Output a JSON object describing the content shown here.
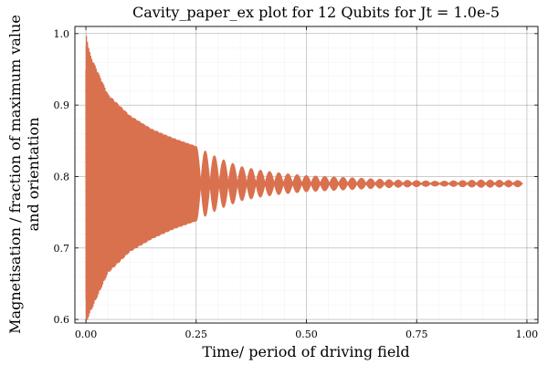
{
  "chart_data": {
    "type": "line",
    "title": "Cavity_paper_ex plot for 12 Qubits for Jt = 1.0e-5",
    "xlabel": "Time/ period of driving field",
    "ylabel_lines": [
      "Magnetisation / fraction of maximum value",
      "and orientation"
    ],
    "xlim": [
      -0.025,
      1.025
    ],
    "ylim": [
      0.595,
      1.01
    ],
    "x_ticks": [
      0.0,
      0.25,
      0.5,
      0.75,
      1.0
    ],
    "x_tick_labels": [
      "0.00",
      "0.25",
      "0.50",
      "0.75",
      "1.00"
    ],
    "y_ticks": [
      0.6,
      0.7,
      0.8,
      0.9,
      1.0
    ],
    "y_tick_labels": [
      "0.6",
      "0.7",
      "0.8",
      "0.9",
      "1.0"
    ],
    "grid": true,
    "legend": false,
    "series": [
      {
        "color": "#d9714f",
        "description": "rapidly oscillating magnetisation with decaying envelope around 0.79",
        "envelope": [
          {
            "x": 0.0,
            "min": 0.595,
            "max": 1.0
          },
          {
            "x": 0.01,
            "min": 0.61,
            "max": 0.97
          },
          {
            "x": 0.05,
            "min": 0.665,
            "max": 0.915
          },
          {
            "x": 0.1,
            "min": 0.695,
            "max": 0.885
          },
          {
            "x": 0.15,
            "min": 0.713,
            "max": 0.866
          },
          {
            "x": 0.2,
            "min": 0.727,
            "max": 0.853
          },
          {
            "x": 0.25,
            "min": 0.738,
            "max": 0.842
          },
          {
            "x": 0.3,
            "min": 0.754,
            "max": 0.826
          },
          {
            "x": 0.35,
            "min": 0.766,
            "max": 0.814
          },
          {
            "x": 0.4,
            "min": 0.772,
            "max": 0.808
          },
          {
            "x": 0.45,
            "min": 0.776,
            "max": 0.804
          },
          {
            "x": 0.5,
            "min": 0.779,
            "max": 0.801
          },
          {
            "x": 0.6,
            "min": 0.782,
            "max": 0.798
          },
          {
            "x": 0.7,
            "min": 0.785,
            "max": 0.795
          },
          {
            "x": 0.8,
            "min": 0.787,
            "max": 0.793
          },
          {
            "x": 0.9,
            "min": 0.785,
            "max": 0.795
          },
          {
            "x": 0.99,
            "min": 0.786,
            "max": 0.794
          }
        ],
        "center": 0.79
      }
    ]
  }
}
